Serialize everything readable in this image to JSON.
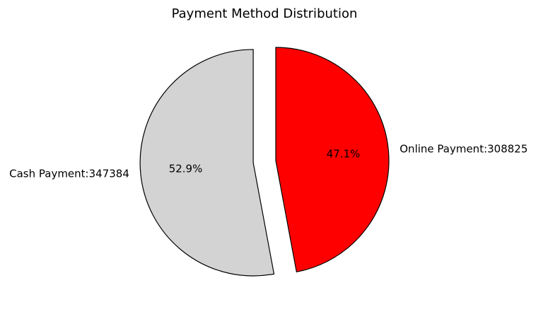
{
  "chart_data": {
    "type": "pie",
    "title": "Payment Method Distribution",
    "slices": [
      {
        "label": "Online Payment:308825",
        "value": 308825,
        "percent_label": "47.1%",
        "color": "#ff0000",
        "exploded": false
      },
      {
        "label": "Cash Payment:347384",
        "value": 347384,
        "percent_label": "52.9%",
        "color": "#d3d3d3",
        "exploded": true
      }
    ],
    "start_angle_deg": 90,
    "direction": "clockwise",
    "legend": "none"
  }
}
